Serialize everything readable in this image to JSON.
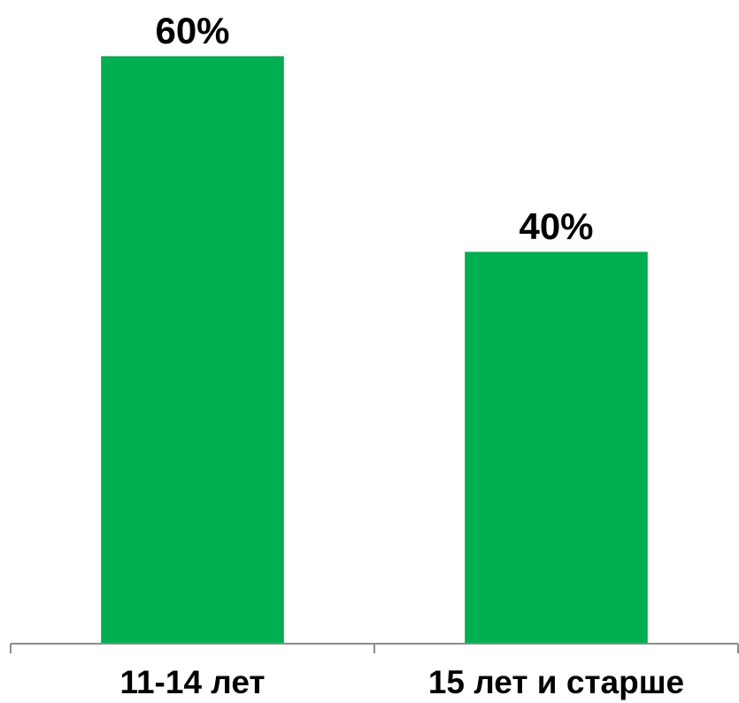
{
  "chart_data": {
    "type": "bar",
    "categories": [
      "11-14 лет",
      "15 лет и старше"
    ],
    "values": [
      60,
      40
    ],
    "value_labels": [
      "60%",
      "40%"
    ],
    "color": "#00b050"
  }
}
